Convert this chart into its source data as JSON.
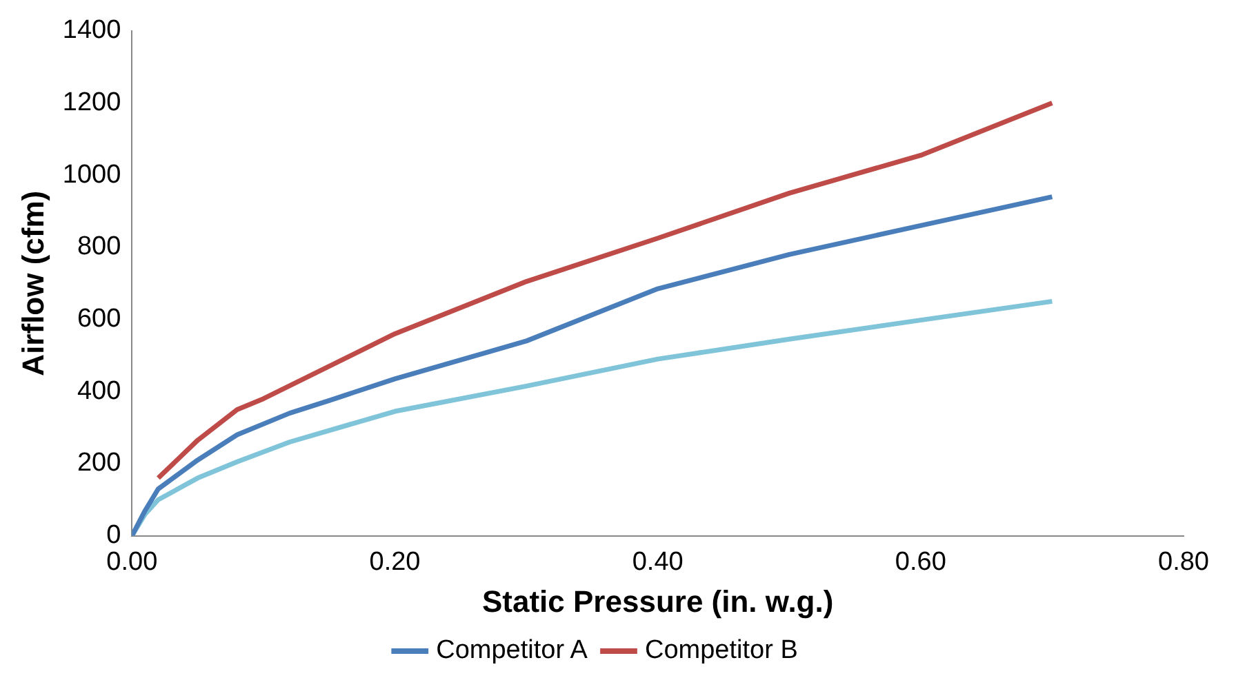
{
  "chart_data": {
    "type": "line",
    "xlabel": "Static Pressure (in. w.g.)",
    "ylabel": "Airflow (cfm)",
    "xlim": [
      0,
      0.8
    ],
    "xticks": [
      {
        "value": 0,
        "label": "0.00"
      },
      {
        "value": 0.2,
        "label": "0.20"
      },
      {
        "value": 0.4,
        "label": "0.40"
      },
      {
        "value": 0.6,
        "label": "0.60"
      },
      {
        "value": 0.8,
        "label": "0.80"
      }
    ],
    "ylim": [
      0,
      1400
    ],
    "yticks": [
      0,
      200,
      400,
      600,
      800,
      1000,
      1200,
      1400
    ],
    "grid": false,
    "legend": "bottom",
    "marker": "none",
    "line_style": "solid",
    "series": [
      {
        "name": "Competitor A",
        "color": "#4a7ebb",
        "x": [
          0,
          0.01,
          0.02,
          0.05,
          0.08,
          0.12,
          0.15,
          0.2,
          0.3,
          0.4,
          0.5,
          0.6,
          0.7
        ],
        "values": [
          0,
          70,
          130,
          210,
          280,
          340,
          375,
          435,
          540,
          685,
          780,
          860,
          940
        ]
      },
      {
        "name": "Competitor B",
        "color": "#be4b48",
        "x": [
          0.02,
          0.05,
          0.08,
          0.1,
          0.2,
          0.3,
          0.4,
          0.5,
          0.6,
          0.7
        ],
        "values": [
          160,
          265,
          350,
          380,
          560,
          705,
          825,
          950,
          1055,
          1200
        ]
      },
      {
        "color": "#7fc4d8",
        "x": [
          0,
          0.01,
          0.02,
          0.05,
          0.08,
          0.12,
          0.2,
          0.3,
          0.4,
          0.5,
          0.6,
          0.7
        ],
        "values": [
          0,
          60,
          100,
          160,
          205,
          260,
          345,
          415,
          490,
          545,
          598,
          650
        ]
      }
    ]
  }
}
